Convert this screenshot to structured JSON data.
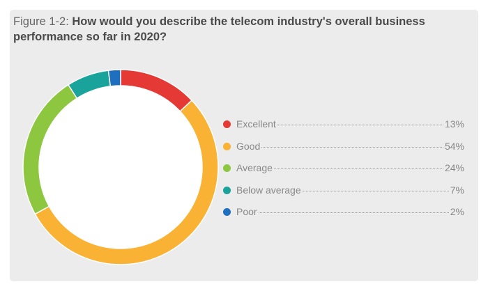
{
  "chart_data": {
    "type": "pie",
    "variant": "donut",
    "title_prefix": "Figure 1-2:",
    "title": "How would you describe the telecom industry's overall business performance so far in 2020?",
    "categories": [
      "Excellent",
      "Good",
      "Average",
      "Below average",
      "Poor"
    ],
    "values": [
      13,
      54,
      24,
      7,
      2
    ],
    "labels": [
      "13%",
      "54%",
      "24%",
      "7%",
      "2%"
    ],
    "colors": [
      "#e53935",
      "#f9b233",
      "#8dc63f",
      "#1aa39a",
      "#1f6fc0"
    ],
    "legend": "right"
  }
}
